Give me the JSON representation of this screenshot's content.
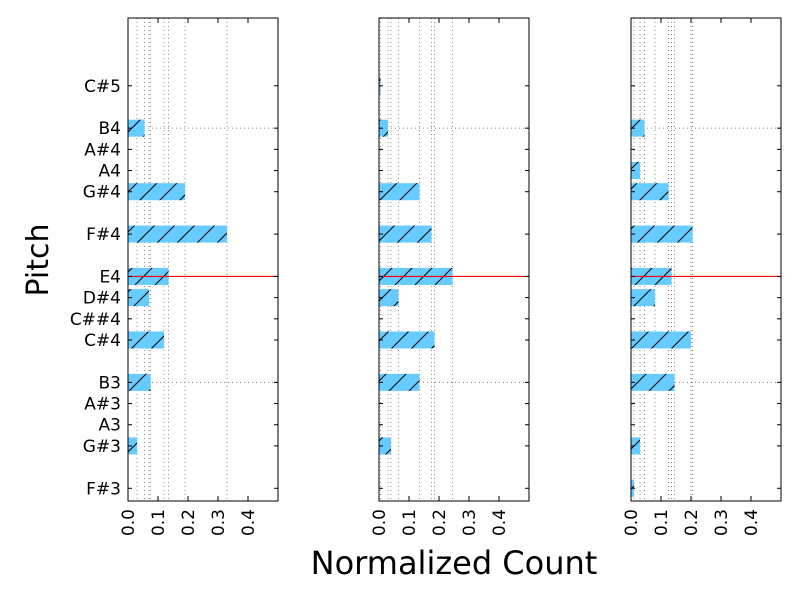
{
  "chart_data": {
    "type": "bar",
    "orientation": "horizontal",
    "ylabel": "Pitch",
    "xlabel": "Normalized Count",
    "xlim": [
      0,
      0.5
    ],
    "xticks": [
      "0.0",
      "0.1",
      "0.2",
      "0.3",
      "0.4"
    ],
    "ytick_labels": [
      "F#3",
      "G#3",
      "A3",
      "A#3",
      "B3",
      "C#4",
      "C##4",
      "D#4",
      "E4",
      "F#4",
      "G#4",
      "A4",
      "A#4",
      "B4",
      "C#5"
    ],
    "ytick_semitones": [
      54,
      56,
      57,
      58,
      59,
      61,
      62,
      63,
      64,
      66,
      68,
      69,
      70,
      71,
      73
    ],
    "ylim_semitones": [
      53.4,
      76.2
    ],
    "bar_color": "#66ccff",
    "hatch": "/",
    "panels": [
      {
        "bars": [
          {
            "pitch": "G#3",
            "value": 0.03
          },
          {
            "pitch": "B3",
            "value": 0.075
          },
          {
            "pitch": "C#4",
            "value": 0.12
          },
          {
            "pitch": "D#4",
            "value": 0.07
          },
          {
            "pitch": "E4",
            "value": 0.135
          },
          {
            "pitch": "F#4",
            "value": 0.33
          },
          {
            "pitch": "G#4",
            "value": 0.19
          },
          {
            "pitch": "B4",
            "value": 0.055
          }
        ],
        "vlines": [
          0.03,
          0.055,
          0.07,
          0.075,
          0.12,
          0.135,
          0.19,
          0.33
        ],
        "red_line_pitch": "E4",
        "dotted_hlines": [
          "B3",
          "B4"
        ]
      },
      {
        "bars": [
          {
            "pitch": "G#3",
            "value": 0.04
          },
          {
            "pitch": "B3",
            "value": 0.135
          },
          {
            "pitch": "C#4",
            "value": 0.185
          },
          {
            "pitch": "D#4",
            "value": 0.065
          },
          {
            "pitch": "E4",
            "value": 0.245
          },
          {
            "pitch": "F#4",
            "value": 0.175
          },
          {
            "pitch": "G#4",
            "value": 0.135
          },
          {
            "pitch": "B4",
            "value": 0.03
          },
          {
            "pitch": "C#5",
            "value": 0.005
          }
        ],
        "vlines": [
          0.005,
          0.03,
          0.04,
          0.065,
          0.135,
          0.175,
          0.185,
          0.245
        ],
        "red_line_pitch": "E4",
        "dotted_hlines": [
          "B3",
          "B4"
        ]
      },
      {
        "bars": [
          {
            "pitch": "F#3",
            "value": 0.01
          },
          {
            "pitch": "G#3",
            "value": 0.03
          },
          {
            "pitch": "B3",
            "value": 0.145
          },
          {
            "pitch": "C#4",
            "value": 0.2
          },
          {
            "pitch": "D#4",
            "value": 0.08
          },
          {
            "pitch": "E4",
            "value": 0.135
          },
          {
            "pitch": "F#4",
            "value": 0.205
          },
          {
            "pitch": "G#4",
            "value": 0.125
          },
          {
            "pitch": "A4",
            "value": 0.03
          },
          {
            "pitch": "B4",
            "value": 0.045
          }
        ],
        "vlines": [
          0.01,
          0.03,
          0.045,
          0.08,
          0.125,
          0.135,
          0.145,
          0.2,
          0.205
        ],
        "red_line_pitch": "E4",
        "dotted_hlines": [
          "B3",
          "B4"
        ]
      }
    ]
  }
}
